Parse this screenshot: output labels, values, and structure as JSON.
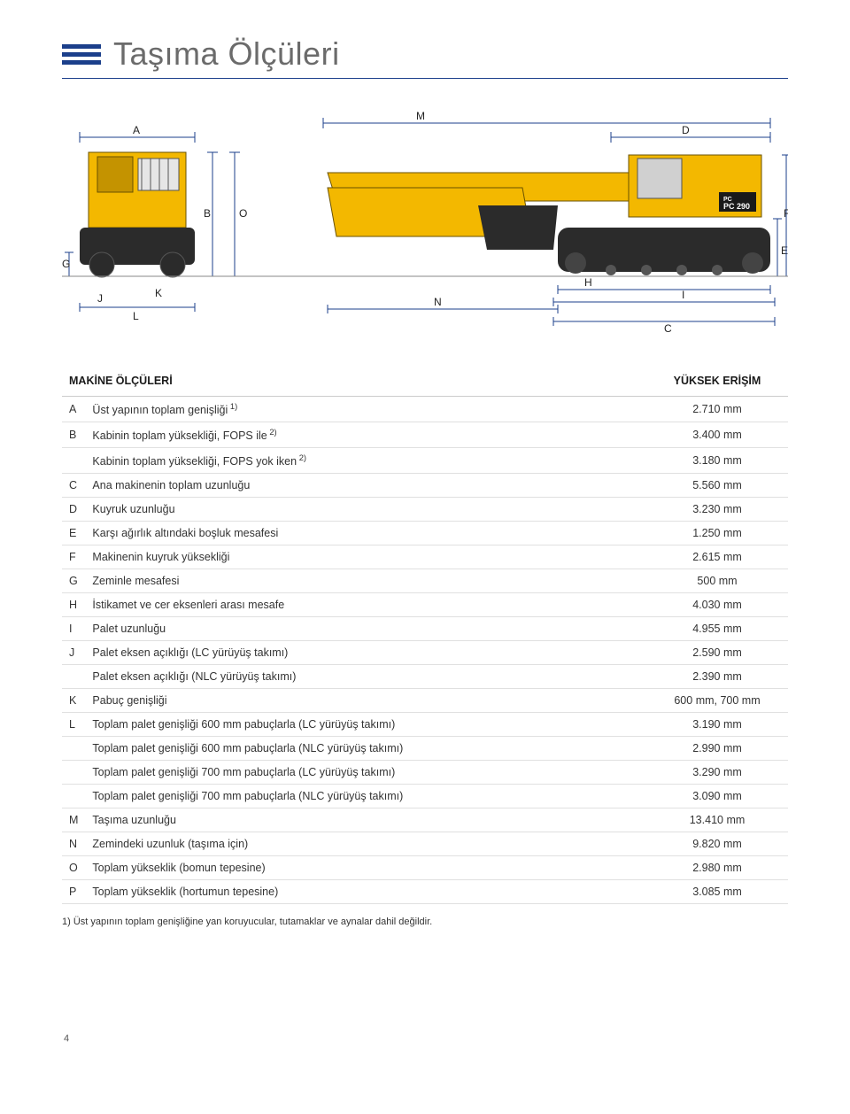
{
  "title": "Taşıma Ölçüleri",
  "diagram": {
    "labels": [
      "A",
      "B",
      "C",
      "D",
      "E",
      "F",
      "G",
      "H",
      "I",
      "J",
      "K",
      "L",
      "M",
      "N",
      "O"
    ],
    "colors": {
      "paper": "#ffffff",
      "machine_body": "#f3b800",
      "machine_dark": "#2b2b2b",
      "dim_line": "#1b3f8b",
      "outline": "#333333"
    },
    "brand_badge": "PC 290"
  },
  "table": {
    "header_label": "MAKİNE ÖLÇÜLERİ",
    "header_value": "YÜKSEK ERİŞİM",
    "rows": [
      {
        "letter": "A",
        "label": "Üst yapının toplam genişliği",
        "sup": "1)",
        "value": "2.710 mm"
      },
      {
        "letter": "B",
        "label": "Kabinin toplam yüksekliği, FOPS ile",
        "sup": "2)",
        "value": "3.400 mm"
      },
      {
        "letter": "",
        "label": "Kabinin toplam yüksekliği, FOPS yok iken",
        "sup": "2)",
        "value": "3.180 mm"
      },
      {
        "letter": "C",
        "label": "Ana makinenin toplam uzunluğu",
        "value": "5.560 mm"
      },
      {
        "letter": "D",
        "label": "Kuyruk uzunluğu",
        "value": "3.230 mm"
      },
      {
        "letter": "E",
        "label": "Karşı ağırlık altındaki boşluk mesafesi",
        "value": "1.250 mm"
      },
      {
        "letter": "F",
        "label": "Makinenin kuyruk yüksekliği",
        "value": "2.615 mm"
      },
      {
        "letter": "G",
        "label": "Zeminle mesafesi",
        "value": "500 mm"
      },
      {
        "letter": "H",
        "label": "İstikamet ve cer eksenleri arası mesafe",
        "value": "4.030 mm"
      },
      {
        "letter": "I",
        "label": "Palet uzunluğu",
        "value": "4.955 mm"
      },
      {
        "letter": "J",
        "label": "Palet eksen açıklığı (LC yürüyüş takımı)",
        "value": "2.590 mm"
      },
      {
        "letter": "",
        "label": "Palet eksen açıklığı (NLC yürüyüş takımı)",
        "value": "2.390 mm"
      },
      {
        "letter": "K",
        "label": "Pabuç genişliği",
        "value": "600 mm, 700 mm"
      },
      {
        "letter": "L",
        "label": "Toplam palet genişliği 600 mm pabuçlarla (LC yürüyüş takımı)",
        "value": "3.190 mm"
      },
      {
        "letter": "",
        "label": "Toplam palet genişliği 600 mm pabuçlarla (NLC yürüyüş takımı)",
        "value": "2.990 mm"
      },
      {
        "letter": "",
        "label": "Toplam palet genişliği 700 mm pabuçlarla (LC yürüyüş takımı)",
        "value": "3.290 mm"
      },
      {
        "letter": "",
        "label": "Toplam palet genişliği 700 mm pabuçlarla (NLC yürüyüş takımı)",
        "value": "3.090 mm"
      },
      {
        "letter": "M",
        "label": "Taşıma uzunluğu",
        "value": "13.410 mm"
      },
      {
        "letter": "N",
        "label": "Zemindeki uzunluk (taşıma için)",
        "value": "9.820 mm"
      },
      {
        "letter": "O",
        "label": "Toplam yükseklik (bomun tepesine)",
        "value": "2.980 mm"
      },
      {
        "letter": "P",
        "label": "Toplam yükseklik (hortumun tepesine)",
        "value": "3.085 mm"
      }
    ]
  },
  "footnote": "1) Üst yapının toplam genişliğine yan koruyucular, tutamaklar ve aynalar dahil değildir.",
  "page_number": "4"
}
